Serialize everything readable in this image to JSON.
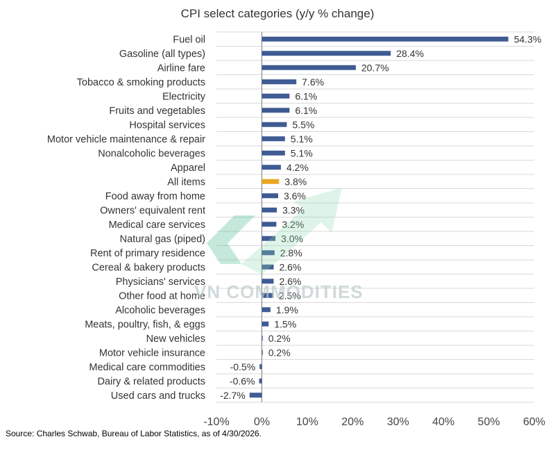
{
  "chart_data": {
    "type": "bar",
    "orientation": "horizontal",
    "title": "CPI select categories (y/y % change)",
    "xlabel": "",
    "ylabel": "",
    "xlim": [
      -10,
      60
    ],
    "xticks": [
      "-10%",
      "0%",
      "10%",
      "20%",
      "30%",
      "40%",
      "50%",
      "60%"
    ],
    "grid": "horizontal lines between categories",
    "categories": [
      "Fuel oil",
      "Gasoline (all types)",
      "Airline fare",
      "Tobacco & smoking products",
      "Electricity",
      "Fruits and vegetables",
      "Hospital services",
      "Motor vehicle maintenance & repair",
      "Nonalcoholic beverages",
      "Apparel",
      "All items",
      "Food away from home",
      "Owners' equivalent rent",
      "Medical care services",
      "Natural gas (piped)",
      "Rent of primary residence",
      "Cereal & bakery products",
      "Physicians' services",
      "Other food at home",
      "Alcoholic beverages",
      "Meats, poultry, fish, & eggs",
      "New vehicles",
      "Motor vehicle insurance",
      "Medical care commodities",
      "Dairy & related products",
      "Used cars and trucks"
    ],
    "values": [
      54.3,
      28.4,
      20.7,
      7.6,
      6.1,
      6.1,
      5.5,
      5.1,
      5.1,
      4.2,
      3.8,
      3.6,
      3.3,
      3.2,
      3.0,
      2.8,
      2.6,
      2.6,
      2.5,
      1.9,
      1.5,
      0.2,
      0.2,
      -0.5,
      -0.6,
      -2.7
    ],
    "value_labels": [
      "54.3%",
      "28.4%",
      "20.7%",
      "7.6%",
      "6.1%",
      "6.1%",
      "5.5%",
      "5.1%",
      "5.1%",
      "4.2%",
      "3.8%",
      "3.6%",
      "3.3%",
      "3.2%",
      "3.0%",
      "2.8%",
      "2.6%",
      "2.6%",
      "2.5%",
      "1.9%",
      "1.5%",
      "0.2%",
      "0.2%",
      "-0.5%",
      "-0.6%",
      "-2.7%"
    ],
    "highlight_category": "All items",
    "colors": {
      "bar": "#3f5b93",
      "highlight": "#e8a723",
      "grid": "#d9d9d9",
      "zero_line": "#8a8a8a"
    }
  },
  "source": "Source: Charles Schwab, Bureau of Labor Statistics, as of 4/30/2026.",
  "watermark": "VN COMMODITIES"
}
